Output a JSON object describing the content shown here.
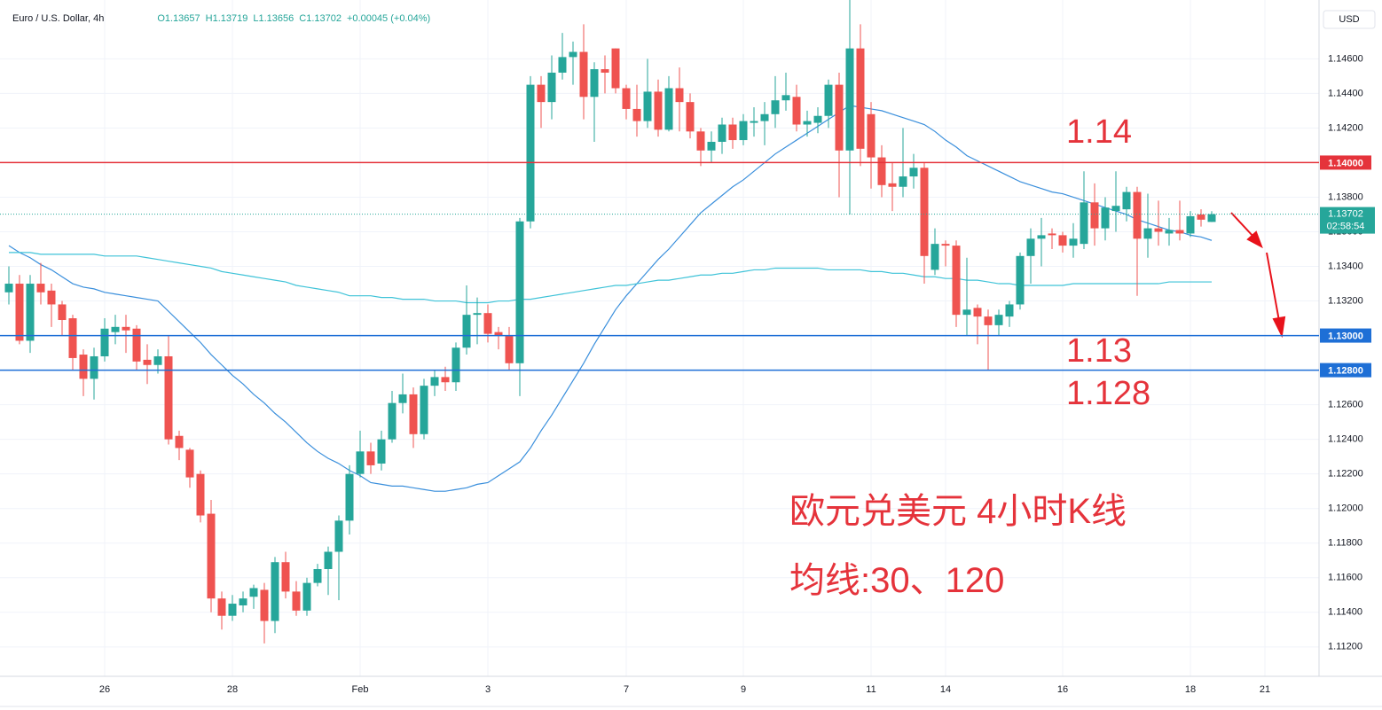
{
  "chart_data": {
    "type": "candlestick",
    "header": {
      "symbol": "Euro / U.S. Dollar, 4h",
      "open": "O1.13657",
      "high": "H1.13719",
      "low": "L1.13656",
      "close": "C1.13702",
      "change": "+0.00045 (+0.04%)"
    },
    "currency": "USD",
    "categories": [
      null,
      null,
      null,
      null,
      null,
      null,
      null,
      null,
      null,
      "26",
      null,
      null,
      null,
      null,
      null,
      null,
      null,
      null,
      null,
      null,
      null,
      "28",
      null,
      null,
      null,
      null,
      null,
      null,
      null,
      null,
      null,
      null,
      null,
      "Feb",
      null,
      null,
      null,
      null,
      null,
      null,
      null,
      null,
      null,
      null,
      null,
      "3",
      null,
      null,
      null,
      null,
      null,
      null,
      null,
      null,
      null,
      null,
      null,
      null,
      "7",
      null,
      null,
      null,
      null,
      null,
      null,
      null,
      null,
      null,
      null,
      "9",
      null,
      null,
      null,
      null,
      null,
      null,
      null,
      null,
      null,
      null,
      null,
      "11",
      null,
      null,
      null,
      null,
      null,
      null,
      "14",
      null,
      null,
      null,
      null,
      null,
      null,
      null,
      null,
      null,
      null,
      "16",
      null,
      null,
      null,
      null,
      null,
      null,
      null,
      null,
      null,
      null,
      null,
      "18",
      null,
      null,
      null,
      null,
      null,
      null,
      "21",
      null,
      null,
      null,
      null
    ],
    "open": [
      1.1325,
      1.133,
      1.1297,
      1.133,
      1.1326,
      1.1318,
      1.131,
      1.1289,
      1.1275,
      1.1288,
      1.1302,
      1.1305,
      1.1304,
      1.1286,
      1.1283,
      1.1288,
      1.1242,
      1.1234,
      1.122,
      1.1197,
      1.1148,
      1.1138,
      1.1144,
      1.1149,
      1.1153,
      1.1135,
      1.1169,
      1.1152,
      1.1141,
      1.1157,
      1.1165,
      1.1175,
      1.1193,
      1.122,
      1.1233,
      1.1226,
      1.124,
      1.1261,
      1.1266,
      1.1243,
      1.1271,
      1.1276,
      1.1273,
      1.1293,
      1.1312,
      1.1313,
      1.1302,
      1.13,
      1.1284,
      1.1366,
      1.1445,
      1.1435,
      1.1452,
      1.1461,
      1.1464,
      1.1438,
      1.1454,
      1.1466,
      1.1443,
      1.1431,
      1.1424,
      1.1441,
      1.1419,
      1.1443,
      1.1435,
      1.1418,
      1.1407,
      1.1412,
      1.1422,
      1.1413,
      1.1423,
      1.1424,
      1.1428,
      1.1436,
      1.1438,
      1.1422,
      1.1423,
      1.1427,
      1.1445,
      1.1407,
      1.1466,
      1.1428,
      1.1403,
      1.1388,
      1.1386,
      1.1392,
      1.1397,
      1.1338,
      1.1353,
      1.1352,
      1.1312,
      1.1316,
      1.1311,
      1.1306,
      1.1311,
      1.1318,
      1.1346,
      1.1356,
      1.1359,
      1.1358,
      1.1352,
      1.1353,
      1.1377,
      1.1362,
      1.1372,
      1.1373,
      1.1383,
      1.1356,
      1.1362,
      1.1359,
      1.1361,
      1.1359,
      1.137,
      1.13657,
      null,
      null,
      null,
      null,
      null,
      null,
      null,
      null,
      null
    ],
    "high": [
      1.134,
      1.1335,
      1.1335,
      1.1342,
      1.133,
      1.132,
      1.1312,
      1.1292,
      1.1293,
      1.131,
      1.1312,
      1.1312,
      1.1306,
      1.1295,
      1.1292,
      1.13,
      1.1245,
      1.1235,
      1.1222,
      1.1205,
      1.1152,
      1.115,
      1.1152,
      1.1156,
      1.1157,
      1.1172,
      1.1175,
      1.1158,
      1.116,
      1.1168,
      1.1178,
      1.1196,
      1.1225,
      1.1245,
      1.1238,
      1.1245,
      1.1268,
      1.1278,
      1.127,
      1.1275,
      1.128,
      1.1282,
      1.1296,
      1.1329,
      1.1322,
      1.1318,
      1.1305,
      1.1305,
      1.1368,
      1.145,
      1.145,
      1.1462,
      1.1475,
      1.147,
      1.148,
      1.1458,
      1.1462,
      1.1466,
      1.1445,
      1.1445,
      1.146,
      1.1448,
      1.145,
      1.1455,
      1.144,
      1.142,
      1.1418,
      1.1426,
      1.1426,
      1.1428,
      1.1432,
      1.1435,
      1.145,
      1.1452,
      1.1445,
      1.143,
      1.1432,
      1.1448,
      1.1452,
      1.1495,
      1.148,
      1.1435,
      1.141,
      1.14,
      1.142,
      1.1405,
      1.14,
      1.1362,
      1.1355,
      1.1355,
      1.1345,
      1.1318,
      1.1315,
      1.1315,
      1.132,
      1.1348,
      1.1362,
      1.1368,
      1.1362,
      1.136,
      1.1365,
      1.1395,
      1.1388,
      1.138,
      1.1395,
      1.1386,
      1.1386,
      1.1382,
      1.1378,
      1.1368,
      1.1378,
      1.1372,
      1.1373,
      1.13719,
      null,
      null,
      null,
      null,
      null,
      null,
      null,
      null,
      null
    ],
    "low": [
      1.1318,
      1.1295,
      1.129,
      1.1318,
      1.1305,
      1.13,
      1.128,
      1.1265,
      1.1263,
      1.1285,
      1.1295,
      1.129,
      1.128,
      1.1272,
      1.1278,
      1.1237,
      1.1228,
      1.1212,
      1.1192,
      1.114,
      1.113,
      1.1135,
      1.114,
      1.1142,
      1.1122,
      1.1128,
      1.1148,
      1.1138,
      1.1138,
      1.1155,
      1.115,
      1.1147,
      1.1185,
      1.1218,
      1.122,
      1.1222,
      1.1238,
      1.1255,
      1.1235,
      1.124,
      1.1265,
      1.1268,
      1.1268,
      1.1289,
      1.1295,
      1.1296,
      1.1292,
      1.128,
      1.1265,
      1.1362,
      1.142,
      1.1425,
      1.1448,
      1.1445,
      1.1425,
      1.1412,
      1.144,
      1.144,
      1.1425,
      1.1415,
      1.142,
      1.1415,
      1.1418,
      1.1418,
      1.1414,
      1.1398,
      1.14,
      1.1405,
      1.1408,
      1.141,
      1.1415,
      1.141,
      1.142,
      1.143,
      1.1418,
      1.1415,
      1.1417,
      1.142,
      1.138,
      1.137,
      1.1398,
      1.1385,
      1.138,
      1.1372,
      1.138,
      1.1385,
      1.133,
      1.1335,
      1.134,
      1.1305,
      1.13,
      1.1295,
      1.128,
      1.13,
      1.1305,
      1.1315,
      1.133,
      1.134,
      1.135,
      1.1348,
      1.1345,
      1.135,
      1.1352,
      1.1355,
      1.136,
      1.1366,
      1.1323,
      1.1345,
      1.1352,
      1.1352,
      1.1355,
      1.1357,
      1.1363,
      1.13656,
      null,
      null,
      null,
      null,
      null,
      null,
      null,
      null,
      null
    ],
    "close": [
      1.133,
      1.1297,
      1.133,
      1.1325,
      1.1318,
      1.1309,
      1.1287,
      1.1275,
      1.1288,
      1.1304,
      1.1305,
      1.1303,
      1.1285,
      1.1283,
      1.1288,
      1.124,
      1.1235,
      1.1218,
      1.1196,
      1.1148,
      1.1138,
      1.1145,
      1.1148,
      1.1154,
      1.1135,
      1.1169,
      1.1152,
      1.1141,
      1.1157,
      1.1165,
      1.1175,
      1.1193,
      1.122,
      1.1233,
      1.1225,
      1.124,
      1.1261,
      1.1266,
      1.1243,
      1.1271,
      1.1276,
      1.1273,
      1.1293,
      1.1312,
      1.1313,
      1.1301,
      1.13,
      1.1284,
      1.1366,
      1.1445,
      1.1435,
      1.1452,
      1.1461,
      1.1464,
      1.1438,
      1.1454,
      1.1452,
      1.1443,
      1.1431,
      1.1424,
      1.1441,
      1.1419,
      1.1443,
      1.1435,
      1.1418,
      1.1407,
      1.1412,
      1.1422,
      1.1413,
      1.1424,
      1.1424,
      1.1428,
      1.1436,
      1.1439,
      1.1422,
      1.1424,
      1.1427,
      1.1445,
      1.1407,
      1.1466,
      1.1408,
      1.1403,
      1.1387,
      1.1386,
      1.1392,
      1.1397,
      1.1346,
      1.1353,
      1.1352,
      1.1312,
      1.1315,
      1.1311,
      1.1306,
      1.1312,
      1.1318,
      1.1346,
      1.1356,
      1.1358,
      1.1358,
      1.1352,
      1.1356,
      1.1377,
      1.1362,
      1.1374,
      1.1375,
      1.1383,
      1.1356,
      1.1362,
      1.136,
      1.1361,
      1.1359,
      1.1369,
      1.1367,
      1.13702,
      null,
      null,
      null,
      null,
      null,
      null,
      null,
      null,
      null
    ],
    "up_color": "#26a69a",
    "down_color": "#ef5350",
    "lines": [
      {
        "color": "#3a8fdc",
        "values": [
          1.1352,
          1.1348,
          1.1345,
          1.1341,
          1.1338,
          1.1334,
          1.133,
          1.1328,
          1.1327,
          1.1325,
          1.1324,
          1.1323,
          1.1322,
          1.1321,
          1.132,
          1.1314,
          1.1308,
          1.1302,
          1.1296,
          1.1289,
          1.1283,
          1.1277,
          1.1272,
          1.1266,
          1.1261,
          1.1255,
          1.125,
          1.1244,
          1.1238,
          1.1233,
          1.1229,
          1.1226,
          1.1222,
          1.1219,
          1.1215,
          1.1214,
          1.1213,
          1.1213,
          1.1212,
          1.1211,
          1.121,
          1.121,
          1.1211,
          1.1212,
          1.1214,
          1.1215,
          1.1219,
          1.1223,
          1.1227,
          1.1235,
          1.1245,
          1.1254,
          1.1264,
          1.1274,
          1.1284,
          1.1295,
          1.1305,
          1.1315,
          1.1323,
          1.133,
          1.1337,
          1.1344,
          1.135,
          1.1357,
          1.1364,
          1.1371,
          1.1376,
          1.1381,
          1.1386,
          1.139,
          1.1395,
          1.14,
          1.1405,
          1.1409,
          1.1413,
          1.1417,
          1.1421,
          1.1425,
          1.1429,
          1.1433,
          1.1432,
          1.1431,
          1.143,
          1.1428,
          1.1426,
          1.1424,
          1.1422,
          1.1418,
          1.1413,
          1.1409,
          1.1404,
          1.1401,
          1.1398,
          1.1395,
          1.1392,
          1.1389,
          1.1387,
          1.1385,
          1.1383,
          1.1382,
          1.138,
          1.1378,
          1.1376,
          1.1374,
          1.1372,
          1.137,
          1.1367,
          1.1365,
          1.1363,
          1.1361,
          1.136,
          1.1358,
          1.1357,
          1.1355,
          null,
          null,
          null,
          null,
          null,
          null,
          null,
          null,
          null
        ]
      },
      {
        "color": "#3fc3d8",
        "values": [
          1.1348,
          1.1348,
          1.1348,
          1.1347,
          1.1347,
          1.1347,
          1.1347,
          1.1347,
          1.1347,
          1.1346,
          1.1346,
          1.1346,
          1.1346,
          1.1345,
          1.1344,
          1.1343,
          1.1342,
          1.1341,
          1.134,
          1.1339,
          1.1337,
          1.1336,
          1.1335,
          1.1334,
          1.1333,
          1.1332,
          1.1331,
          1.1329,
          1.1328,
          1.1327,
          1.1326,
          1.1325,
          1.1323,
          1.1323,
          1.1323,
          1.1322,
          1.1322,
          1.1321,
          1.1321,
          1.1321,
          1.132,
          1.132,
          1.132,
          1.1319,
          1.1319,
          1.1319,
          1.132,
          1.132,
          1.1321,
          1.1321,
          1.1322,
          1.1323,
          1.1324,
          1.1325,
          1.1326,
          1.1327,
          1.1328,
          1.1329,
          1.1329,
          1.133,
          1.1331,
          1.1332,
          1.1332,
          1.1333,
          1.1334,
          1.1335,
          1.1335,
          1.1336,
          1.1336,
          1.1337,
          1.1338,
          1.1338,
          1.1339,
          1.1339,
          1.1339,
          1.1339,
          1.1339,
          1.1338,
          1.1338,
          1.1338,
          1.1338,
          1.1337,
          1.1337,
          1.1336,
          1.1336,
          1.1335,
          1.1334,
          1.1334,
          1.1333,
          1.1333,
          1.1332,
          1.1332,
          1.1331,
          1.133,
          1.133,
          1.1329,
          1.1329,
          1.1329,
          1.1329,
          1.1329,
          1.133,
          1.133,
          1.133,
          1.133,
          1.133,
          1.133,
          1.133,
          1.133,
          1.133,
          1.1331,
          1.1331,
          1.1331,
          1.1331,
          1.1331,
          null,
          null,
          null,
          null,
          null,
          null,
          null,
          null,
          null
        ]
      }
    ],
    "ylim": [
      1.1103,
      1.1494
    ],
    "yticks": [
      {
        "value": 1.112,
        "label": "1.11200"
      },
      {
        "value": 1.114,
        "label": "1.11400"
      },
      {
        "value": 1.116,
        "label": "1.11600"
      },
      {
        "value": 1.118,
        "label": "1.11800"
      },
      {
        "value": 1.12,
        "label": "1.12000"
      },
      {
        "value": 1.122,
        "label": "1.12200"
      },
      {
        "value": 1.124,
        "label": "1.12400"
      },
      {
        "value": 1.126,
        "label": "1.12600"
      },
      {
        "value": 1.128,
        "label": "1.12800"
      },
      {
        "value": 1.13,
        "label": "1.13000"
      },
      {
        "value": 1.132,
        "label": "1.13200"
      },
      {
        "value": 1.134,
        "label": "1.13400"
      },
      {
        "value": 1.136,
        "label": "1.13600"
      },
      {
        "value": 1.138,
        "label": "1.13800"
      },
      {
        "value": 1.14,
        "label": "1.14000"
      },
      {
        "value": 1.142,
        "label": "1.14200"
      },
      {
        "value": 1.144,
        "label": "1.14400"
      },
      {
        "value": 1.146,
        "label": "1.14600"
      }
    ],
    "grid": true,
    "levels": [
      {
        "value": 1.14,
        "label": "1.14000",
        "color": "#e5333b"
      },
      {
        "value": 1.13,
        "label": "1.13000",
        "color": "#1e6fd6"
      },
      {
        "value": 1.128,
        "label": "1.12800",
        "color": "#1e6fd6"
      }
    ],
    "last_price": {
      "value": 1.13702,
      "label": "1.13702",
      "countdown": "02:58:54"
    },
    "annotations": [
      "1.14",
      "1.13",
      "1.128",
      "欧元兑美元 4小时K线",
      "均线:30、120"
    ]
  }
}
